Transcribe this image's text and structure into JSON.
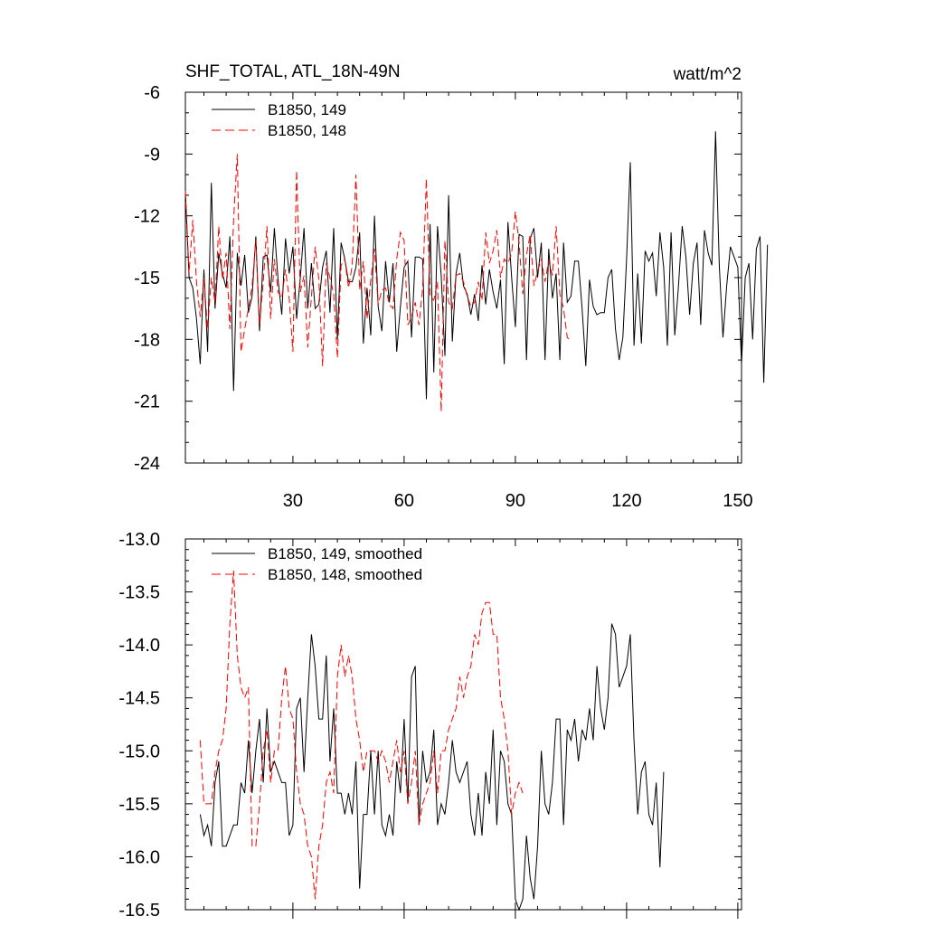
{
  "chart_data": [
    {
      "type": "line",
      "title": "SHF_TOTAL, ATL_18N-49N",
      "units": "watt/m^2",
      "xlim": [
        1,
        151
      ],
      "ylim": [
        -24,
        -6
      ],
      "xticks": [
        30,
        60,
        90,
        120,
        150
      ],
      "xtick_labels": [
        "30",
        "60",
        "90",
        "120",
        "150"
      ],
      "yticks": [
        -24,
        -21,
        -18,
        -15,
        -12,
        -9,
        -6
      ],
      "ytick_labels": [
        "-24",
        "-21",
        "-18",
        "-15",
        "-12",
        "-9",
        "-6"
      ],
      "legend_position": "top-left",
      "grid": false,
      "series": [
        {
          "name": "B1850, 149",
          "color": "#000000",
          "style": "solid",
          "x_start": 1,
          "values": [
            -10.8,
            -15.0,
            -15.5,
            -17.0,
            -19.2,
            -14.6,
            -18.6,
            -10.4,
            -16.5,
            -13.8,
            -14.8,
            -15.5,
            -13.0,
            -20.5,
            -13.8,
            -15.4,
            -13.9,
            -16.7,
            -15.9,
            -13.0,
            -17.6,
            -14.0,
            -13.9,
            -15.7,
            -12.6,
            -15.1,
            -16.8,
            -13.1,
            -14.8,
            -13.5,
            -17.0,
            -15.0,
            -12.6,
            -16.5,
            -14.3,
            -16.5,
            -16.3,
            -14.5,
            -13.7,
            -16.7,
            -12.6,
            -18.0,
            -13.3,
            -14.1,
            -15.2,
            -15.2,
            -14.5,
            -12.8,
            -18.2,
            -15.5,
            -17.8,
            -12.0,
            -16.4,
            -17.6,
            -14.2,
            -16.2,
            -14.3,
            -18.6,
            -16.4,
            -14.5,
            -14.2,
            -17.9,
            -14.0,
            -14.0,
            -14.1,
            -20.9,
            -12.4,
            -19.6,
            -12.5,
            -14.9,
            -18.8,
            -11.0,
            -18.1,
            -14.8,
            -13.8,
            -15.4,
            -15.8,
            -16.8,
            -15.8,
            -17.1,
            -14.4,
            -16.3,
            -14.6,
            -15.7,
            -16.5,
            -15.1,
            -19.2,
            -12.3,
            -15.0,
            -17.4,
            -12.9,
            -13.0,
            -19.0,
            -13.1,
            -12.6,
            -15.0,
            -13.3,
            -19.0,
            -13.6,
            -16.0,
            -14.8,
            -19.0,
            -13.3,
            -16.2,
            -15.9,
            -14.2,
            -14.2,
            -16.5,
            -19.3,
            -15.1,
            -16.4,
            -16.8,
            -16.7,
            -16.7,
            -15.0,
            -14.6,
            -17.5,
            -19.0,
            -17.9,
            -14.1,
            -9.4,
            -18.3,
            -14.8,
            -18.2,
            -13.7,
            -14.2,
            -13.8,
            -15.9,
            -12.8,
            -14.5,
            -18.3,
            -12.8,
            -17.8,
            -15.4,
            -12.5,
            -14.0,
            -16.8,
            -14.3,
            -13.3,
            -17.3,
            -12.7,
            -13.8,
            -14.4,
            -7.9,
            -14.4,
            -17.9,
            -15.4,
            -13.5,
            -14.0,
            -14.5,
            -19.2,
            -15.0,
            -14.3,
            -18.0,
            -13.6,
            -13.0,
            -20.1,
            -13.4
          ]
        },
        {
          "name": "B1850, 148",
          "color": "#ff0000",
          "style": "dashed",
          "x_start": 1,
          "values": [
            -10.8,
            -14.8,
            -12.2,
            -15.2,
            -16.9,
            -15.0,
            -17.5,
            -15.0,
            -16.2,
            -12.5,
            -15.1,
            -13.8,
            -17.5,
            -12.2,
            -9.0,
            -18.6,
            -17.5,
            -16.5,
            -15.4,
            -13.2,
            -17.3,
            -15.2,
            -12.5,
            -17.0,
            -14.1,
            -15.7,
            -16.0,
            -14.6,
            -16.0,
            -18.6,
            -9.8,
            -15.7,
            -14.9,
            -18.4,
            -15.9,
            -13.5,
            -15.1,
            -19.3,
            -14.3,
            -15.0,
            -15.8,
            -18.9,
            -14.4,
            -14.1,
            -15.5,
            -14.4,
            -10.0,
            -15.6,
            -14.2,
            -17.0,
            -15.1,
            -13.6,
            -16.3,
            -15.6,
            -15.5,
            -16.3,
            -16.5,
            -14.1,
            -12.8,
            -13.2,
            -17.3,
            -16.9,
            -16.2,
            -17.3,
            -15.5,
            -10.2,
            -15.9,
            -16.1,
            -15.2,
            -21.5,
            -13.2,
            -16.2,
            -16.5,
            -14.9,
            -14.8,
            -15.2,
            -15.9,
            -16.4,
            -16.2,
            -15.2,
            -16.1,
            -12.8,
            -14.3,
            -13.7,
            -12.7,
            -15.0,
            -14.1,
            -14.3,
            -13.8,
            -11.8,
            -13.3,
            -15.8,
            -13.9,
            -12.9,
            -15.4,
            -14.7,
            -14.1,
            -15.2,
            -14.2,
            -14.9,
            -12.5,
            -15.8,
            -16.5,
            -17.9,
            -18.1
          ]
        }
      ]
    },
    {
      "type": "line",
      "title": "",
      "xlim": [
        1,
        151
      ],
      "ylim": [
        -16.5,
        -13.0
      ],
      "xticks": [
        30,
        60,
        90,
        120,
        150
      ],
      "yticks": [
        -16.5,
        -16.0,
        -15.5,
        -15.0,
        -14.5,
        -14.0,
        -13.5,
        -13.0
      ],
      "ytick_labels": [
        "-16.5",
        "-16.0",
        "-15.5",
        "-15.0",
        "-14.5",
        "-14.0",
        "-13.5",
        "-13.0"
      ],
      "legend_position": "top-left",
      "grid": false,
      "series": [
        {
          "name": "B1850, 149, smoothed",
          "color": "#000000",
          "style": "solid",
          "x_start": 5,
          "values": [
            -15.6,
            -15.8,
            -15.7,
            -15.9,
            -15.3,
            -15.1,
            -15.9,
            -15.9,
            -15.8,
            -15.7,
            -15.7,
            -15.3,
            -15.4,
            -14.9,
            -15.4,
            -15.0,
            -14.7,
            -15.3,
            -14.6,
            -15.2,
            -15.1,
            -15.2,
            -15.3,
            -15.3,
            -15.8,
            -15.7,
            -14.6,
            -14.5,
            -15.2,
            -14.5,
            -13.9,
            -14.2,
            -14.7,
            -14.7,
            -14.1,
            -15.1,
            -14.6,
            -15.4,
            -15.4,
            -15.6,
            -15.4,
            -15.6,
            -15.1,
            -16.3,
            -15.6,
            -15.6,
            -15.0,
            -15.6,
            -15.0,
            -15.7,
            -15.8,
            -15.6,
            -15.8,
            -15.1,
            -15.4,
            -14.7,
            -15.5,
            -14.3,
            -14.2,
            -15.7,
            -15.0,
            -15.3,
            -15.2,
            -14.8,
            -15.7,
            -15.5,
            -15.6,
            -15.3,
            -14.9,
            -15.2,
            -15.3,
            -15.2,
            -15.1,
            -15.6,
            -15.8,
            -15.4,
            -15.8,
            -15.2,
            -15.5,
            -14.8,
            -15.7,
            -15.0,
            -15.1,
            -15.5,
            -15.6,
            -16.4,
            -16.5,
            -16.4,
            -15.8,
            -16.2,
            -16.4,
            -15.9,
            -15.0,
            -15.5,
            -15.6,
            -15.3,
            -14.7,
            -14.7,
            -15.7,
            -14.8,
            -14.9,
            -14.7,
            -15.1,
            -14.8,
            -14.9,
            -14.6,
            -14.9,
            -14.2,
            -14.6,
            -14.8,
            -14.5,
            -13.8,
            -13.9,
            -14.4,
            -14.3,
            -14.2,
            -13.9,
            -14.9,
            -15.6,
            -15.2,
            -15.1,
            -15.6,
            -15.7,
            -15.3,
            -16.1,
            -15.2
          ]
        },
        {
          "name": "B1850, 148, smoothed",
          "color": "#ff0000",
          "style": "dashed",
          "x_start": 5,
          "values": [
            -14.9,
            -15.5,
            -15.5,
            -15.5,
            -15.2,
            -15.0,
            -14.9,
            -14.6,
            -13.8,
            -13.3,
            -14.1,
            -14.4,
            -14.5,
            -14.4,
            -15.9,
            -15.9,
            -15.5,
            -15.0,
            -14.8,
            -15.3,
            -15.0,
            -15.0,
            -14.5,
            -14.2,
            -14.6,
            -14.7,
            -15.2,
            -15.5,
            -15.6,
            -15.9,
            -16.0,
            -16.4,
            -15.9,
            -15.7,
            -15.3,
            -15.2,
            -15.4,
            -14.3,
            -14.0,
            -14.3,
            -14.1,
            -14.3,
            -14.7,
            -14.9,
            -15.2,
            -15.0,
            -15.0,
            -15.0,
            -15.1,
            -15.0,
            -15.1,
            -15.3,
            -15.1,
            -14.9,
            -15.2,
            -15.0,
            -15.5,
            -15.3,
            -15.0,
            -15.7,
            -15.5,
            -15.4,
            -15.3,
            -15.0,
            -15.4,
            -15.0,
            -15.0,
            -14.8,
            -14.7,
            -14.6,
            -14.3,
            -14.5,
            -14.3,
            -14.2,
            -13.9,
            -14.0,
            -13.7,
            -13.6,
            -13.6,
            -13.9,
            -13.9,
            -14.5,
            -14.7,
            -15.0,
            -15.6,
            -15.4,
            -15.3,
            -15.4
          ]
        }
      ]
    }
  ]
}
